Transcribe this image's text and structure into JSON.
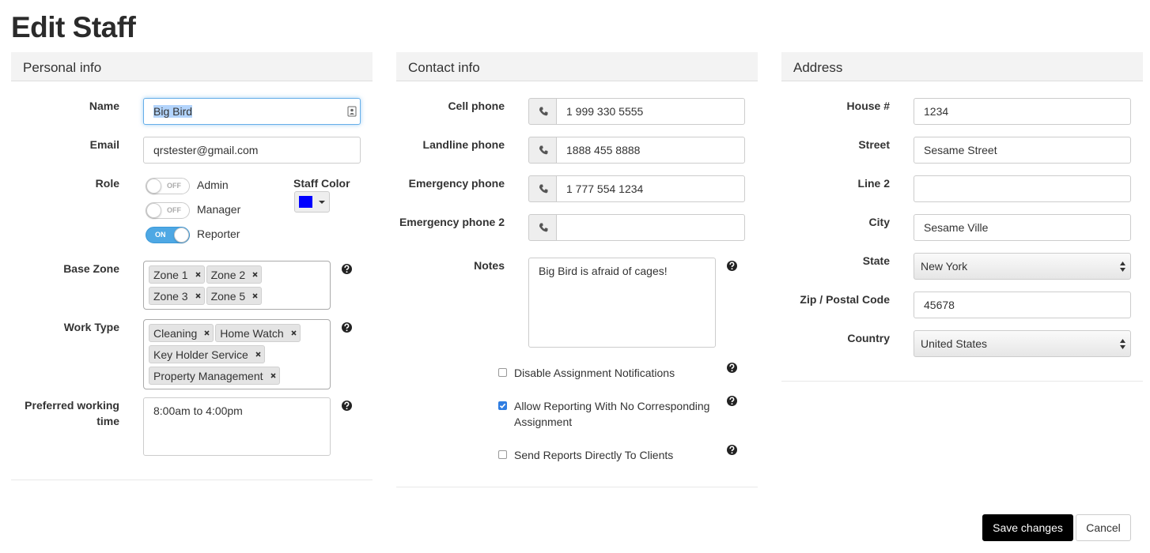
{
  "title": "Edit Staff",
  "personal_info": {
    "heading": "Personal info",
    "name": {
      "label": "Name",
      "value": "Big Bird"
    },
    "email": {
      "label": "Email",
      "value": "qrstester@gmail.com"
    },
    "role": {
      "label": "Role",
      "options": [
        {
          "label": "Admin",
          "state": "OFF"
        },
        {
          "label": "Manager",
          "state": "OFF"
        },
        {
          "label": "Reporter",
          "state": "ON"
        }
      ]
    },
    "staff_color": {
      "label": "Staff Color",
      "color": "#0000ff"
    },
    "base_zone": {
      "label": "Base Zone",
      "tags": [
        "Zone 1",
        "Zone 2",
        "Zone 3",
        "Zone 5"
      ]
    },
    "work_type": {
      "label": "Work Type",
      "tags": [
        "Cleaning",
        "Home Watch",
        "Key Holder Service",
        "Property Management"
      ]
    },
    "preferred_working_time": {
      "label": "Preferred working time",
      "value": "8:00am to 4:00pm"
    }
  },
  "contact_info": {
    "heading": "Contact info",
    "phones": [
      {
        "label": "Cell phone",
        "value": "1 999 330 5555"
      },
      {
        "label": "Landline phone",
        "value": "1888 455 8888"
      },
      {
        "label": "Emergency phone",
        "value": "1 777 554 1234"
      },
      {
        "label": "Emergency phone 2"
      }
    ],
    "notes": {
      "label": "Notes",
      "value": "Big Bird is afraid of cages!"
    },
    "options": [
      {
        "label": "Disable Assignment Notifications",
        "checked": false
      },
      {
        "label": "Allow Reporting With No Corresponding Assignment",
        "checked": true
      },
      {
        "label": "Send Reports Directly To Clients",
        "checked": false
      }
    ]
  },
  "address": {
    "heading": "Address",
    "fields": [
      {
        "label": "House #",
        "value": "1234"
      },
      {
        "label": "Street",
        "value": "Sesame Street"
      },
      {
        "label": "Line 2"
      },
      {
        "label": "City",
        "value": "Sesame Ville"
      },
      {
        "label": "State",
        "value": "New York",
        "select": true
      },
      {
        "label": "Zip / Postal Code",
        "value": "45678"
      },
      {
        "label": "Country",
        "value": "United States",
        "select": true
      }
    ]
  },
  "buttons": {
    "save": "Save changes",
    "cancel": "Cancel"
  }
}
